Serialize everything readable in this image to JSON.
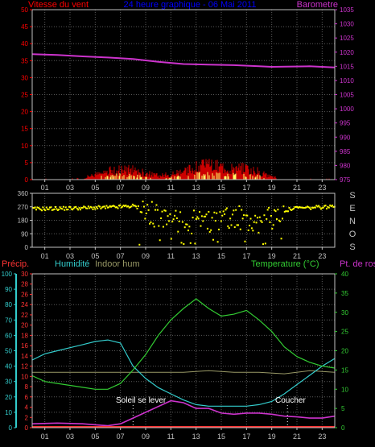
{
  "colors": {
    "background": "#000000",
    "frame": "#c0c0c0",
    "grid": "#5a5a5a",
    "wind_label": "#ff0000",
    "title": "#0000ff",
    "baro": "#cc33cc",
    "wind_avg": "#cc0000",
    "gust": "#ffff66",
    "dir": "#ffff00",
    "compass": "#c0c0c0",
    "precip": "#ff3333",
    "humidity": "#33cccc",
    "indoor_hum": "#999966",
    "temperature": "#33cc33",
    "dewpoint": "#cc33cc",
    "sun": "#ffffff",
    "xtick": "#c0c0c0"
  },
  "chart_data": [
    {
      "type": "area",
      "title": "24 heure graphique - 06 Mai 2011",
      "left_axis_label": "Vitesse du vent",
      "right_axis_label": "Barometre",
      "x_tick_labels": [
        "01",
        "03",
        "05",
        "07",
        "09",
        "11",
        "13",
        "15",
        "17",
        "19",
        "21",
        "23"
      ],
      "left_ticks": [
        "0",
        "5",
        "10",
        "15",
        "20",
        "25",
        "30",
        "35",
        "40",
        "45",
        "50"
      ],
      "right_ticks": [
        "975",
        "980",
        "985",
        "990",
        "995",
        "1000",
        "1005",
        "1010",
        "1015",
        "1020",
        "1025",
        "1030",
        "1035"
      ],
      "ylim_left": [
        0,
        50
      ],
      "ylim_right": [
        975,
        1035
      ],
      "barometer": {
        "x": [
          0,
          2,
          4,
          6,
          8,
          10,
          12,
          14,
          16,
          18,
          19,
          20,
          22,
          24
        ],
        "values": [
          1019.3,
          1019.0,
          1018.5,
          1018.1,
          1017.6,
          1016.6,
          1015.8,
          1015.6,
          1015.4,
          1015.0,
          1014.8,
          1014.9,
          1015.0,
          1014.6
        ]
      },
      "wind_avg_profile": {
        "x": [
          0,
          2,
          4,
          5,
          6,
          7,
          8,
          9,
          10,
          11,
          12,
          13,
          14,
          15,
          16,
          17,
          18,
          19,
          20,
          21,
          22,
          24
        ],
        "values": [
          0.3,
          0.4,
          0.5,
          1.5,
          2.5,
          3.2,
          3.0,
          2.0,
          1.2,
          1.6,
          2.8,
          3.8,
          4.2,
          4.0,
          3.6,
          3.4,
          2.4,
          0.8,
          0.3,
          0.1,
          0.1,
          0.3
        ]
      },
      "wind_gust_max": 6.5,
      "grid": true
    },
    {
      "type": "scatter",
      "x_tick_labels": [
        "01",
        "03",
        "05",
        "07",
        "09",
        "11",
        "13",
        "15",
        "17",
        "19",
        "21",
        "23"
      ],
      "left_ticks": [
        "0",
        "90",
        "180",
        "270",
        "360"
      ],
      "ylim": [
        0,
        360
      ],
      "compass_labels": [
        "S",
        "E",
        "N",
        "O",
        "S"
      ],
      "direction_profile": {
        "x": [
          0,
          3,
          6,
          7,
          8,
          9,
          10,
          11,
          12,
          13,
          14,
          15,
          16,
          17,
          18,
          19,
          20,
          21,
          22,
          23,
          24
        ],
        "values": [
          255,
          260,
          265,
          270,
          275,
          250,
          200,
          180,
          170,
          165,
          170,
          180,
          200,
          190,
          175,
          190,
          245,
          262,
          262,
          268,
          270
        ]
      },
      "grid": true
    },
    {
      "type": "line",
      "labels": {
        "precip": "Précip.",
        "humidity": "Humidité",
        "indoor_hum": "Indoor hum",
        "temperature": "Temperature (°C)",
        "dewpoint": "Pt. de rosée"
      },
      "annotations": {
        "sunrise": "Soleil se lever",
        "sunset": "Coucher"
      },
      "sunrise_hour": 8,
      "sunset_hour": 20.25,
      "x_tick_labels": [
        "01",
        "03",
        "05",
        "07",
        "09",
        "11",
        "13",
        "15",
        "17",
        "19",
        "21",
        "23"
      ],
      "precip_ticks": [
        "0",
        "2",
        "4",
        "6",
        "8",
        "10",
        "12",
        "14",
        "16",
        "18",
        "20",
        "22",
        "24",
        "26",
        "28",
        "30"
      ],
      "humidity_ticks": [
        "0",
        "10",
        "20",
        "30",
        "40",
        "50",
        "60",
        "70",
        "80",
        "90",
        "100"
      ],
      "temp_ticks": [
        "0",
        "5",
        "10",
        "15",
        "20",
        "25",
        "30",
        "35",
        "40"
      ],
      "ylim_humidity": [
        0,
        100
      ],
      "ylim_temperature": [
        0,
        40
      ],
      "ylim_precip": [
        0,
        30
      ],
      "humidity": {
        "x": [
          0,
          1,
          2,
          3,
          4,
          5,
          6,
          7,
          8,
          9,
          10,
          11,
          12,
          13,
          14,
          15,
          16,
          17,
          18,
          19,
          20,
          21,
          22,
          23,
          24
        ],
        "values": [
          44,
          48,
          50,
          52,
          54,
          56,
          57,
          55,
          40,
          32,
          26,
          22,
          18,
          15,
          14,
          14,
          14,
          14,
          15,
          17,
          22,
          28,
          34,
          40,
          45
        ]
      },
      "indoor_humidity": {
        "x": [
          0,
          2,
          4,
          6,
          8,
          10,
          12,
          14,
          16,
          18,
          20,
          22,
          24
        ],
        "values": [
          36,
          36,
          36,
          36,
          36,
          36,
          36,
          37,
          36,
          36,
          35,
          37,
          36
        ]
      },
      "temperature": {
        "x": [
          0,
          1,
          2,
          3,
          4,
          5,
          6,
          7,
          8,
          9,
          10,
          11,
          12,
          13,
          14,
          15,
          16,
          17,
          18,
          19,
          20,
          21,
          22,
          23,
          24
        ],
        "values": [
          13.5,
          12.0,
          11.5,
          11.0,
          10.5,
          10.0,
          10.0,
          11.5,
          15.0,
          19.0,
          24.0,
          28.0,
          31.0,
          33.5,
          31.0,
          29.0,
          29.5,
          30.5,
          28.0,
          25.0,
          21.0,
          18.5,
          17.0,
          16.0,
          15.5
        ]
      },
      "dewpoint": {
        "x": [
          0,
          2,
          4,
          6,
          7,
          8,
          9,
          10,
          11,
          12,
          13,
          14,
          15,
          16,
          17,
          18,
          19,
          20,
          21,
          22,
          23,
          24
        ],
        "values": [
          1.0,
          1.2,
          1.0,
          0.5,
          1.0,
          2.5,
          4.0,
          5.5,
          7.0,
          6.5,
          5.0,
          5.0,
          3.8,
          3.5,
          3.8,
          3.8,
          3.5,
          3.0,
          2.8,
          2.5,
          2.5,
          3.0
        ]
      },
      "precip_total": 0,
      "grid": true
    }
  ]
}
